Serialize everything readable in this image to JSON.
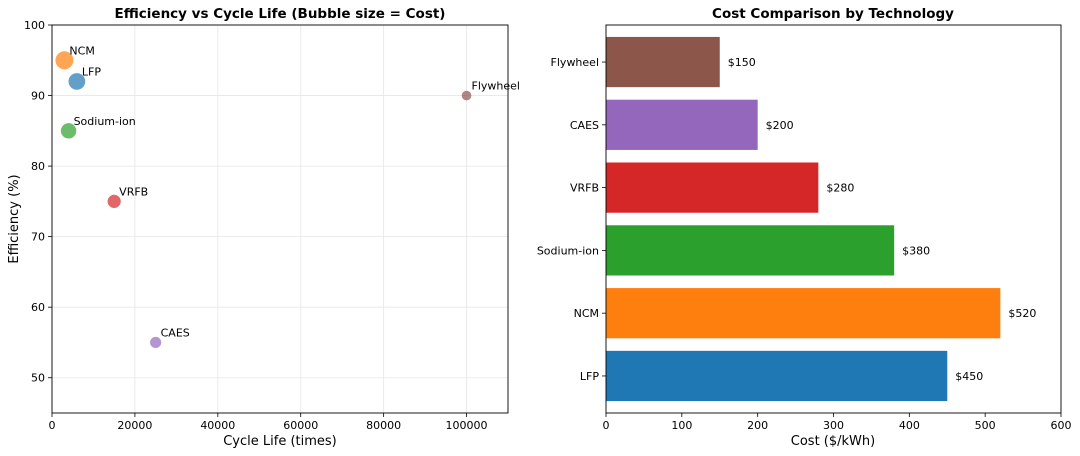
{
  "chart_data": [
    {
      "type": "scatter",
      "title": "Efficiency vs Cycle Life (Bubble size = Cost)",
      "xlabel": "Cycle Life (times)",
      "ylabel": "Efficiency (%)",
      "xlim": [
        0,
        110000
      ],
      "ylim": [
        45,
        100
      ],
      "xticks": [
        0,
        20000,
        40000,
        60000,
        80000,
        100000
      ],
      "xtick_labels": [
        "0",
        "20000",
        "40000",
        "60000",
        "80000",
        "100000"
      ],
      "yticks": [
        50,
        60,
        70,
        80,
        90,
        100
      ],
      "ytick_labels": [
        "50",
        "60",
        "70",
        "80",
        "90",
        "100"
      ],
      "grid": true,
      "points": [
        {
          "label": "LFP",
          "x": 6000,
          "y": 92,
          "cost": 450,
          "color": "#1f77b4"
        },
        {
          "label": "NCM",
          "x": 3000,
          "y": 95,
          "cost": 520,
          "color": "#ff7f0e"
        },
        {
          "label": "Sodium-ion",
          "x": 4000,
          "y": 85,
          "cost": 380,
          "color": "#2ca02c"
        },
        {
          "label": "VRFB",
          "x": 15000,
          "y": 75,
          "cost": 280,
          "color": "#d62728"
        },
        {
          "label": "CAES",
          "x": 25000,
          "y": 55,
          "cost": 200,
          "color": "#9467bd"
        },
        {
          "label": "Flywheel",
          "x": 100000,
          "y": 90,
          "cost": 150,
          "color": "#8c564b"
        }
      ]
    },
    {
      "type": "bar",
      "orientation": "horizontal",
      "title": "Cost Comparison by Technology",
      "xlabel": "Cost ($/kWh)",
      "ylabel": "",
      "xlim": [
        0,
        600
      ],
      "xticks": [
        0,
        100,
        200,
        300,
        400,
        500,
        600
      ],
      "xtick_labels": [
        "0",
        "100",
        "200",
        "300",
        "400",
        "500",
        "600"
      ],
      "grid": false,
      "categories": [
        "LFP",
        "NCM",
        "Sodium-ion",
        "VRFB",
        "CAES",
        "Flywheel"
      ],
      "values": [
        450,
        520,
        380,
        280,
        200,
        150
      ],
      "value_labels": [
        "$450",
        "$520",
        "$380",
        "$280",
        "$200",
        "$150"
      ],
      "colors": [
        "#1f77b4",
        "#ff7f0e",
        "#2ca02c",
        "#d62728",
        "#9467bd",
        "#8c564b"
      ]
    }
  ]
}
